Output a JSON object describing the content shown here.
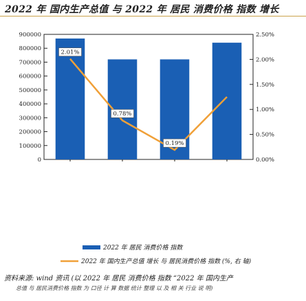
{
  "figure": {
    "title": "2022 年 国内生产总值 与 2022 年 居民 消费价格 指数 增长",
    "source": "资料来源: wind 资讯 (以 2022 年 居民 消费价格 指数 “2022 年 国内生产",
    "source_extra": "总值 与 居民消费价格 指数 为 口径 计 算 数据 统计 整理 以 及 相 关 行业 说 明)"
  },
  "chart_data": {
    "type": "bar",
    "categories": [
      "",
      "",
      "",
      ""
    ],
    "series": [
      {
        "name": "2022 年 居民 消费价格 指数",
        "type": "bar",
        "axis": "left",
        "values": [
          870000,
          720000,
          720000,
          840000
        ],
        "color": "#1a5fb4"
      },
      {
        "name": "2022 年 国内生产总值 增长 与 居民消费价格 指数 (%, 右 轴)",
        "type": "line",
        "axis": "right",
        "values": [
          2.01,
          0.78,
          0.19,
          1.25
        ],
        "color": "#f0a038"
      }
    ],
    "data_labels": [
      "2.01%",
      "0.78%",
      "0.19%"
    ],
    "left_axis": {
      "ticks": [
        "900000",
        "800000",
        "700000",
        "600000",
        "500000",
        "400000",
        "300000",
        "200000",
        "100000",
        "0"
      ],
      "ylim": [
        0,
        900000
      ]
    },
    "right_axis": {
      "ticks": [
        "2.50%",
        "2.00%",
        "1.50%",
        "1.00%",
        "0.50%",
        "0.00%"
      ],
      "ylim": [
        0,
        2.5
      ]
    },
    "x_tick_labels": [
      "",
      "",
      "",
      ""
    ],
    "legend_position": "bottom",
    "grid": false
  }
}
